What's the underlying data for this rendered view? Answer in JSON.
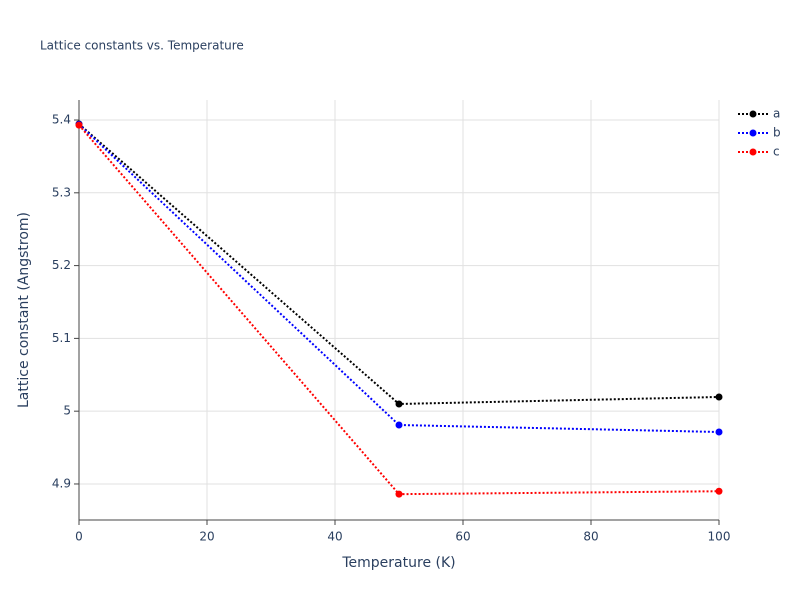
{
  "chart_data": {
    "type": "line",
    "title": "Lattice constants vs. Temperature",
    "x_label": "Temperature (K)",
    "y_label": "Lattice constant (Angstrom)",
    "x": [
      0,
      50,
      100
    ],
    "series": [
      {
        "name": "a",
        "color": "#000000",
        "values": [
          5.3945,
          5.0099,
          5.0195
        ]
      },
      {
        "name": "b",
        "color": "#0000ff",
        "values": [
          5.394,
          4.981,
          4.9714
        ]
      },
      {
        "name": "c",
        "color": "#ff0000",
        "values": [
          5.393,
          4.886,
          4.89
        ]
      }
    ],
    "xlim": [
      0,
      100
    ],
    "xticks": [
      0,
      20,
      40,
      60,
      80,
      100
    ],
    "ylim": [
      4.8505,
      5.4275
    ],
    "yticks": [
      4.9,
      5,
      5.1,
      5.2,
      5.3,
      5.4
    ],
    "grid": true,
    "legend": "top-right"
  }
}
